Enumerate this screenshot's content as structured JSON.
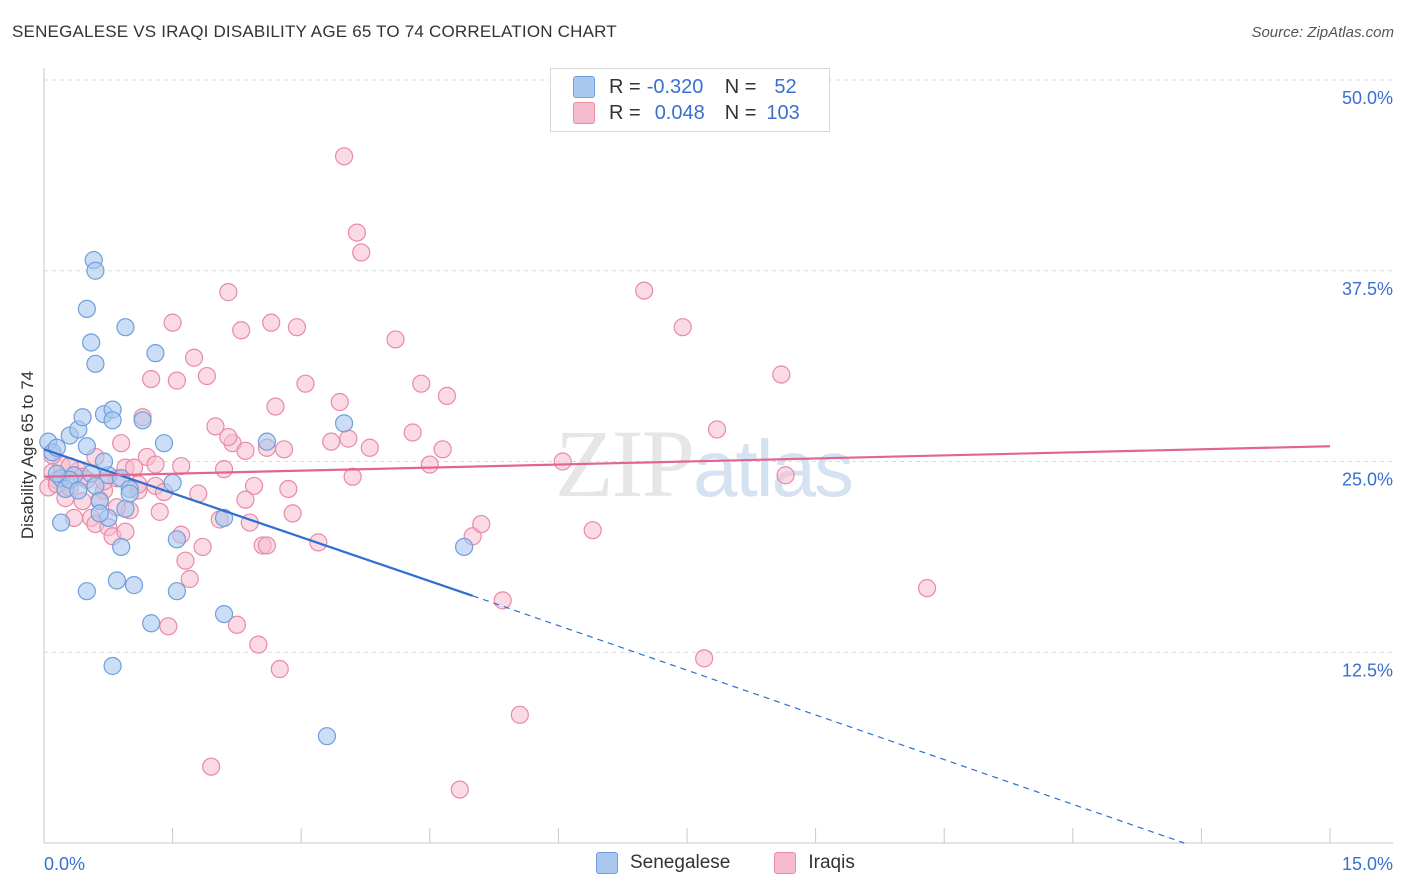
{
  "title": "SENEGALESE VS IRAQI DISABILITY AGE 65 TO 74 CORRELATION CHART",
  "source": "Source: ZipAtlas.com",
  "watermark": {
    "zip": "ZIP",
    "atlas": "atlas"
  },
  "legend": {
    "rows": [
      {
        "r_label": "R =",
        "r_value": "-0.320",
        "n_label": "N =",
        "n_value": "52"
      },
      {
        "r_label": "R =",
        "r_value": "0.048",
        "n_label": "N =",
        "n_value": "103"
      }
    ]
  },
  "bottom_legend": [
    "Senegalese",
    "Iraqis"
  ],
  "colors": {
    "senegalese_fill": "#a9c8f0",
    "senegalese_stroke": "#6f9fdc",
    "senegalese_line": "#2f6fd0",
    "iraqis_fill": "#f6bccd",
    "iraqis_stroke": "#e98aa7",
    "iraqis_line": "#e0668f",
    "tick_label": "#3a6fd1",
    "grid": "#dcdcdc"
  },
  "chart_data": {
    "type": "scatter",
    "title": "SENEGALESE VS IRAQI DISABILITY AGE 65 TO 74 CORRELATION CHART",
    "xlabel": "",
    "ylabel": "Disability Age 65 to 74",
    "xlim": [
      0,
      15
    ],
    "ylim": [
      0,
      50
    ],
    "x_tick_labels": [
      "0.0%",
      "15.0%"
    ],
    "y_tick_labels": [
      "12.5%",
      "25.0%",
      "37.5%",
      "50.0%"
    ],
    "y_ticks": [
      12.5,
      25,
      37.5,
      50
    ],
    "grid": "horizontal dashed",
    "series": [
      {
        "name": "Senegalese",
        "trend": {
          "x0": 0,
          "y0": 25.8,
          "x1": 5.0,
          "y1": 16.2,
          "dashed_to_x": 13.3,
          "dashed_to_y": 0
        },
        "points": [
          [
            0.05,
            26.3
          ],
          [
            0.1,
            25.6
          ],
          [
            0.15,
            25.9
          ],
          [
            0.2,
            23.9
          ],
          [
            0.25,
            23.2
          ],
          [
            0.3,
            26.7
          ],
          [
            0.35,
            24.1
          ],
          [
            0.4,
            27.1
          ],
          [
            0.45,
            27.9
          ],
          [
            0.5,
            26.0
          ],
          [
            0.55,
            24.2
          ],
          [
            0.6,
            23.4
          ],
          [
            0.65,
            22.4
          ],
          [
            0.7,
            28.1
          ],
          [
            0.8,
            28.4
          ],
          [
            0.6,
            31.4
          ],
          [
            0.5,
            35.0
          ],
          [
            0.55,
            32.8
          ],
          [
            0.58,
            38.2
          ],
          [
            0.6,
            37.5
          ],
          [
            0.95,
            33.8
          ],
          [
            1.3,
            32.1
          ],
          [
            1.15,
            27.7
          ],
          [
            0.75,
            24.1
          ],
          [
            0.8,
            27.7
          ],
          [
            0.9,
            23.9
          ],
          [
            1.0,
            23.2
          ],
          [
            0.95,
            21.9
          ],
          [
            0.75,
            21.3
          ],
          [
            0.85,
            17.2
          ],
          [
            0.9,
            19.4
          ],
          [
            1.05,
            16.9
          ],
          [
            0.5,
            16.5
          ],
          [
            1.25,
            14.4
          ],
          [
            0.8,
            11.6
          ],
          [
            1.4,
            26.2
          ],
          [
            1.5,
            23.6
          ],
          [
            1.55,
            19.9
          ],
          [
            1.55,
            16.5
          ],
          [
            2.1,
            21.3
          ],
          [
            2.1,
            15.0
          ],
          [
            2.6,
            26.3
          ],
          [
            3.5,
            27.5
          ],
          [
            4.9,
            19.4
          ],
          [
            3.3,
            7.0
          ],
          [
            0.2,
            21.0
          ],
          [
            0.3,
            23.8
          ],
          [
            0.15,
            24.2
          ],
          [
            0.4,
            23.1
          ],
          [
            0.7,
            25.0
          ],
          [
            0.65,
            21.6
          ],
          [
            1.0,
            22.9
          ]
        ]
      },
      {
        "name": "Iraqis",
        "trend": {
          "x0": 0,
          "y0": 24.0,
          "x1": 15,
          "y1": 26.0
        },
        "points": [
          [
            0.05,
            23.3
          ],
          [
            0.1,
            24.3
          ],
          [
            0.15,
            23.8
          ],
          [
            0.2,
            24.8
          ],
          [
            0.25,
            22.6
          ],
          [
            0.3,
            23.3
          ],
          [
            0.35,
            21.3
          ],
          [
            0.4,
            24.4
          ],
          [
            0.45,
            22.4
          ],
          [
            0.5,
            23.8
          ],
          [
            0.55,
            21.3
          ],
          [
            0.6,
            20.9
          ],
          [
            0.65,
            22.5
          ],
          [
            0.7,
            23.1
          ],
          [
            0.75,
            20.7
          ],
          [
            0.8,
            20.1
          ],
          [
            0.85,
            23.9
          ],
          [
            0.9,
            26.2
          ],
          [
            0.95,
            24.6
          ],
          [
            1.0,
            21.8
          ],
          [
            1.05,
            24.6
          ],
          [
            1.1,
            23.1
          ],
          [
            1.15,
            27.9
          ],
          [
            1.2,
            25.3
          ],
          [
            1.25,
            30.4
          ],
          [
            1.3,
            23.4
          ],
          [
            1.35,
            21.7
          ],
          [
            1.4,
            23.0
          ],
          [
            1.45,
            14.2
          ],
          [
            1.5,
            34.1
          ],
          [
            1.55,
            30.3
          ],
          [
            1.6,
            24.7
          ],
          [
            1.65,
            18.5
          ],
          [
            1.7,
            17.3
          ],
          [
            1.75,
            31.8
          ],
          [
            1.8,
            22.9
          ],
          [
            1.85,
            19.4
          ],
          [
            1.9,
            30.6
          ],
          [
            1.95,
            5.0
          ],
          [
            2.0,
            27.3
          ],
          [
            2.05,
            21.2
          ],
          [
            2.1,
            24.5
          ],
          [
            2.15,
            36.1
          ],
          [
            2.2,
            26.2
          ],
          [
            2.25,
            14.3
          ],
          [
            2.3,
            33.6
          ],
          [
            2.35,
            25.7
          ],
          [
            2.4,
            21.0
          ],
          [
            2.45,
            23.4
          ],
          [
            2.5,
            13.0
          ],
          [
            2.55,
            19.5
          ],
          [
            2.6,
            19.5
          ],
          [
            2.65,
            34.1
          ],
          [
            2.7,
            28.6
          ],
          [
            2.75,
            11.4
          ],
          [
            2.8,
            25.8
          ],
          [
            2.85,
            23.2
          ],
          [
            2.9,
            21.6
          ],
          [
            2.95,
            33.8
          ],
          [
            3.05,
            30.1
          ],
          [
            3.2,
            19.7
          ],
          [
            3.35,
            26.3
          ],
          [
            3.45,
            28.9
          ],
          [
            3.5,
            45.0
          ],
          [
            3.55,
            26.5
          ],
          [
            3.6,
            24.0
          ],
          [
            3.65,
            40.0
          ],
          [
            3.7,
            38.7
          ],
          [
            3.8,
            25.9
          ],
          [
            4.1,
            33.0
          ],
          [
            4.3,
            26.9
          ],
          [
            4.4,
            30.1
          ],
          [
            4.5,
            24.8
          ],
          [
            4.65,
            25.8
          ],
          [
            4.7,
            29.3
          ],
          [
            4.85,
            3.5
          ],
          [
            5.0,
            20.1
          ],
          [
            5.1,
            20.9
          ],
          [
            5.35,
            15.9
          ],
          [
            5.55,
            8.4
          ],
          [
            6.05,
            25.0
          ],
          [
            6.4,
            20.5
          ],
          [
            7.0,
            36.2
          ],
          [
            7.45,
            33.8
          ],
          [
            7.7,
            12.1
          ],
          [
            7.85,
            27.1
          ],
          [
            8.6,
            30.7
          ],
          [
            8.65,
            24.1
          ],
          [
            10.3,
            16.7
          ],
          [
            0.1,
            25.4
          ],
          [
            0.3,
            24.7
          ],
          [
            0.6,
            25.3
          ],
          [
            0.15,
            23.5
          ],
          [
            0.45,
            24.0
          ],
          [
            0.7,
            23.7
          ],
          [
            0.85,
            22.0
          ],
          [
            1.1,
            23.5
          ],
          [
            1.3,
            24.8
          ],
          [
            0.95,
            20.4
          ],
          [
            2.15,
            26.6
          ],
          [
            2.35,
            22.5
          ],
          [
            1.6,
            20.2
          ],
          [
            2.6,
            25.9
          ]
        ]
      }
    ]
  }
}
